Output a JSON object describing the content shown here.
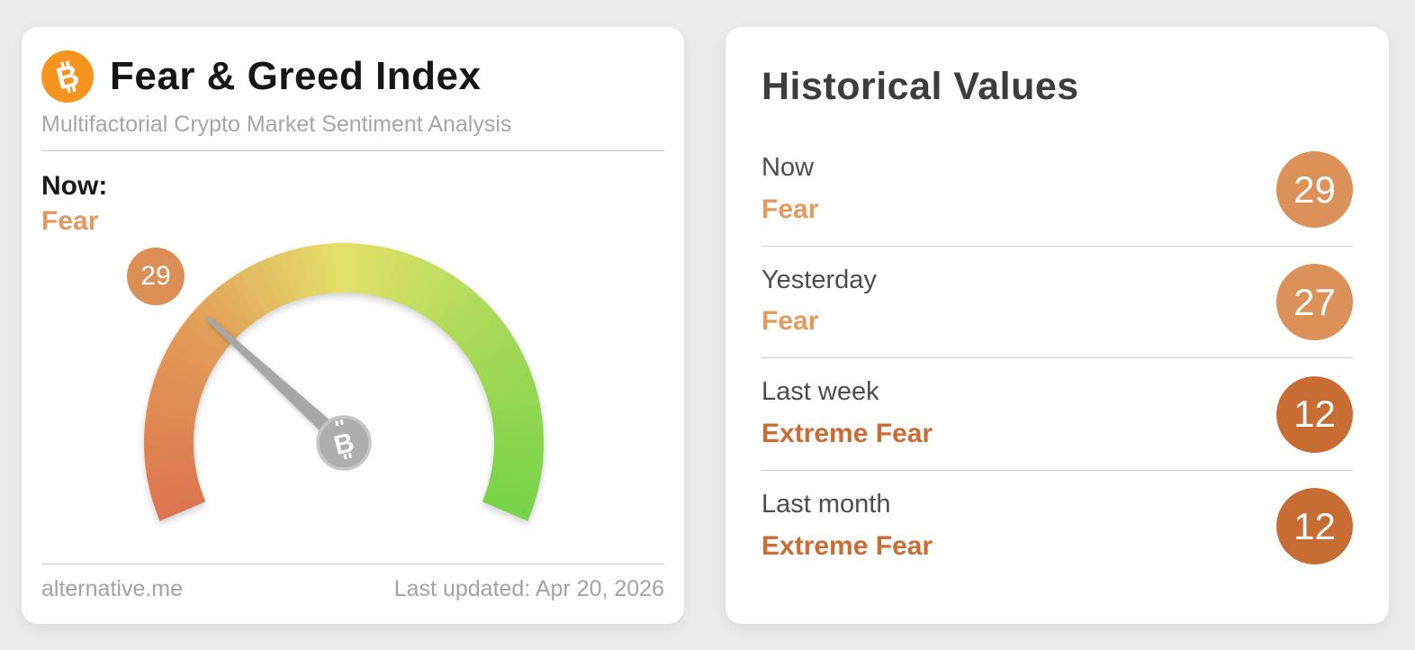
{
  "fng_card": {
    "title": "Fear & Greed Index",
    "subtitle": "Multifactorial Crypto Market Sentiment Analysis",
    "now_label": "Now:",
    "now_sentiment": "Fear",
    "now_sentiment_color": "#e29a5e",
    "source": "alternative.me",
    "last_updated": "Last updated: Apr 20, 2026"
  },
  "gauge": {
    "value": 29,
    "min": 0,
    "max": 100,
    "start_angle_deg": 203,
    "span_deg": 226,
    "badge_value": "29",
    "badge_color": "#db8f55",
    "needle_color": "#a7a7a7",
    "hub_color": "#aeaeae",
    "hub_ring_color": "#c6c6c6",
    "color_stops": [
      {
        "t": 0.0,
        "color": "#dd7550"
      },
      {
        "t": 0.26,
        "color": "#e29a57"
      },
      {
        "t": 0.5,
        "color": "#e5e16a"
      },
      {
        "t": 0.74,
        "color": "#a6d957"
      },
      {
        "t": 1.0,
        "color": "#77d348"
      }
    ],
    "bitcoin_orange": "#f7941d"
  },
  "historical_card": {
    "title": "Historical Values",
    "rows": [
      {
        "label": "Now",
        "sentiment": "Fear",
        "value": "29",
        "sentiment_color": "#e29a5e",
        "badge_color": "#db9157"
      },
      {
        "label": "Yesterday",
        "sentiment": "Fear",
        "value": "27",
        "sentiment_color": "#e29a5e",
        "badge_color": "#db9157"
      },
      {
        "label": "Last week",
        "sentiment": "Extreme Fear",
        "value": "12",
        "sentiment_color": "#cb6c35",
        "badge_color": "#c76c32"
      },
      {
        "label": "Last month",
        "sentiment": "Extreme Fear",
        "value": "12",
        "sentiment_color": "#cb6c35",
        "badge_color": "#c76c32"
      }
    ]
  },
  "chart_data": {
    "type": "gauge",
    "title": "Fear & Greed Index",
    "subtitle": "Multifactorial Crypto Market Sentiment Analysis",
    "value": 29,
    "classification": "Fear",
    "range": [
      0,
      100
    ],
    "arc_span_deg": 226,
    "scale_colors": [
      "red/orange (extreme fear, 0)",
      "yellow (neutral, 50)",
      "green (extreme greed, 100)"
    ],
    "historical": [
      {
        "period": "Now",
        "classification": "Fear",
        "value": 29
      },
      {
        "period": "Yesterday",
        "classification": "Fear",
        "value": 27
      },
      {
        "period": "Last week",
        "classification": "Extreme Fear",
        "value": 12
      },
      {
        "period": "Last month",
        "classification": "Extreme Fear",
        "value": 12
      }
    ],
    "source": "alternative.me",
    "last_updated": "Apr 20, 2026"
  }
}
